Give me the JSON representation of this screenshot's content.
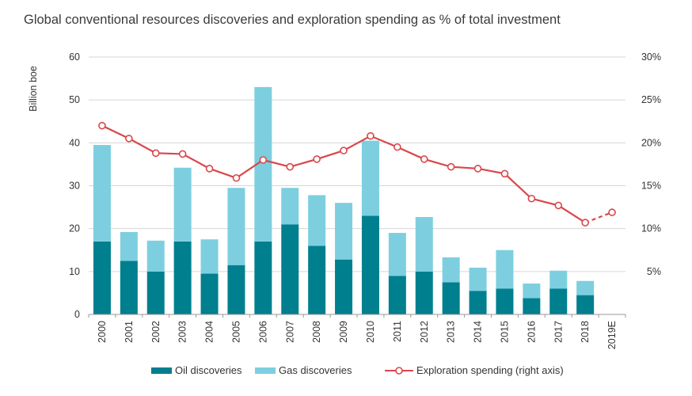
{
  "chart_data": {
    "type": "bar",
    "title": "Global conventional resources discoveries and exploration spending as % of total investment",
    "ylabel": "Billion boe",
    "ylim": [
      0,
      60
    ],
    "y_ticks": [
      "0",
      "10",
      "20",
      "30",
      "40",
      "50",
      "60"
    ],
    "y2lim": [
      0,
      30
    ],
    "y2_ticks": [
      "5%",
      "10%",
      "15%",
      "20%",
      "25%",
      "30%"
    ],
    "categories": [
      "2000",
      "2001",
      "2002",
      "2003",
      "2004",
      "2005",
      "2006",
      "2007",
      "2008",
      "2009",
      "2010",
      "2011",
      "2012",
      "2013",
      "2014",
      "2015",
      "2016",
      "2017",
      "2018",
      "2019E"
    ],
    "series": [
      {
        "name": "Oil discoveries",
        "kind": "bar-stacked",
        "color": "#007f8f",
        "values": [
          17,
          12.5,
          10,
          17,
          9.5,
          11.5,
          17,
          21,
          16,
          12.8,
          23,
          9,
          10,
          7.5,
          5.5,
          6,
          3.8,
          6,
          4.5,
          null
        ]
      },
      {
        "name": "Gas discoveries",
        "kind": "bar-stacked",
        "color": "#7dcfdf",
        "values": [
          22.5,
          6.7,
          7.2,
          17.2,
          8,
          18,
          36,
          8.5,
          11.8,
          13.2,
          17.5,
          10,
          12.7,
          5.8,
          5.4,
          9,
          3.4,
          4.2,
          3.3,
          null
        ]
      },
      {
        "name": "Exploration spending (right axis)",
        "kind": "line",
        "axis": "right",
        "color": "#d9474b",
        "values": [
          22,
          20.5,
          18.8,
          18.7,
          17,
          15.9,
          18,
          17.2,
          18.1,
          19.1,
          20.8,
          19.5,
          18.1,
          17.2,
          17,
          16.4,
          13.5,
          12.7,
          10.7,
          11.9
        ],
        "dashed_from_index": 18
      }
    ],
    "legend_position": "bottom",
    "grid": true
  }
}
